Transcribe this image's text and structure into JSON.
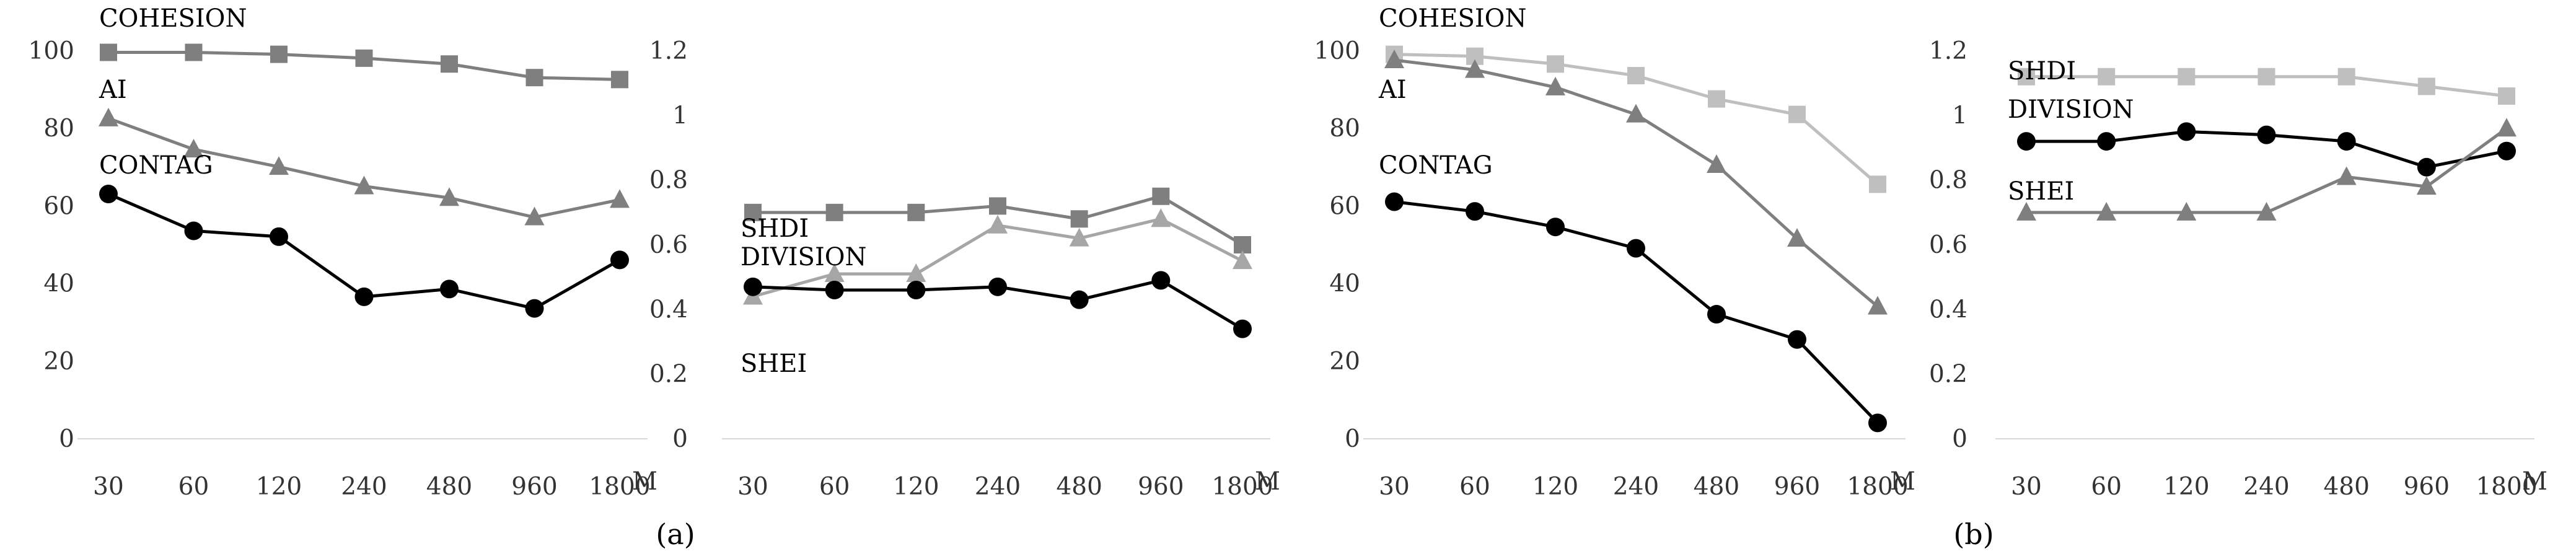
{
  "chart_data": [
    {
      "type": "line",
      "panel": "a",
      "categories": [
        "30",
        "60",
        "120",
        "240",
        "480",
        "960",
        "1800"
      ],
      "x_unit": "M",
      "ylim": [
        0,
        100
      ],
      "yticks": [
        "0",
        "20",
        "40",
        "60",
        "80",
        "100"
      ],
      "series": [
        {
          "name": "COHESION",
          "marker": "square",
          "color": "#7f7f7f",
          "values": [
            99.6,
            99.6,
            99.1,
            98.1,
            96.6,
            93.1,
            92.6
          ]
        },
        {
          "name": "AI",
          "marker": "triangle",
          "color": "#7f7f7f",
          "values": [
            82.6,
            74.6,
            70.1,
            65.1,
            62.1,
            57.1,
            61.6
          ]
        },
        {
          "name": "CONTAG",
          "marker": "circle",
          "color": "#000000",
          "values": [
            63.1,
            53.6,
            52.1,
            36.6,
            38.6,
            33.6,
            46.1
          ]
        }
      ]
    },
    {
      "type": "line",
      "panel": "a",
      "categories": [
        "30",
        "60",
        "120",
        "240",
        "480",
        "960",
        "1800"
      ],
      "x_unit": "M",
      "ylim": [
        0,
        1.2
      ],
      "yticks": [
        "0",
        "0.2",
        "0.4",
        "0.6",
        "0.8",
        "1",
        "1.2"
      ],
      "series": [
        {
          "name": "SHDI",
          "marker": "square",
          "color": "#7f7f7f",
          "values": [
            0.7,
            0.7,
            0.7,
            0.72,
            0.68,
            0.75,
            0.6
          ]
        },
        {
          "name": "SHEI",
          "marker": "triangle",
          "color": "#a6a6a6",
          "values": [
            0.44,
            0.51,
            0.51,
            0.66,
            0.62,
            0.68,
            0.55
          ]
        },
        {
          "name": "DIVISION",
          "marker": "circle",
          "color": "#000000",
          "values": [
            0.47,
            0.46,
            0.46,
            0.47,
            0.43,
            0.49,
            0.34
          ]
        }
      ]
    },
    {
      "type": "line",
      "panel": "b",
      "categories": [
        "30",
        "60",
        "120",
        "240",
        "480",
        "960",
        "1800"
      ],
      "x_unit": "M",
      "ylim": [
        0,
        100
      ],
      "yticks": [
        "0",
        "20",
        "40",
        "60",
        "80",
        "100"
      ],
      "series": [
        {
          "name": "COHESION",
          "marker": "square",
          "color": "#bfbfbf",
          "values": [
            99.1,
            98.6,
            96.6,
            93.6,
            87.6,
            83.6,
            65.6
          ]
        },
        {
          "name": "AI",
          "marker": "triangle",
          "color": "#7f7f7f",
          "values": [
            97.6,
            95.1,
            90.6,
            83.6,
            70.6,
            51.6,
            34.1
          ]
        },
        {
          "name": "CONTAG",
          "marker": "circle",
          "color": "#000000",
          "values": [
            61.1,
            58.6,
            54.6,
            49.1,
            32.1,
            25.6,
            4.1
          ]
        }
      ]
    },
    {
      "type": "line",
      "panel": "b",
      "categories": [
        "30",
        "60",
        "120",
        "240",
        "480",
        "960",
        "1800"
      ],
      "x_unit": "M",
      "ylim": [
        0,
        1.2
      ],
      "yticks": [
        "0",
        "0.2",
        "0.4",
        "0.6",
        "0.8",
        "1",
        "1.2"
      ],
      "series": [
        {
          "name": "SHDI",
          "marker": "square",
          "color": "#bfbfbf",
          "values": [
            1.12,
            1.12,
            1.12,
            1.12,
            1.12,
            1.09,
            1.06
          ]
        },
        {
          "name": "DIVISION",
          "marker": "circle",
          "color": "#000000",
          "values": [
            0.92,
            0.92,
            0.95,
            0.94,
            0.92,
            0.84,
            0.89
          ]
        },
        {
          "name": "SHEI",
          "marker": "triangle",
          "color": "#7f7f7f",
          "values": [
            0.7,
            0.7,
            0.7,
            0.7,
            0.81,
            0.78,
            0.96
          ]
        }
      ]
    }
  ],
  "panel_labels": [
    "(a)",
    "(b)"
  ]
}
